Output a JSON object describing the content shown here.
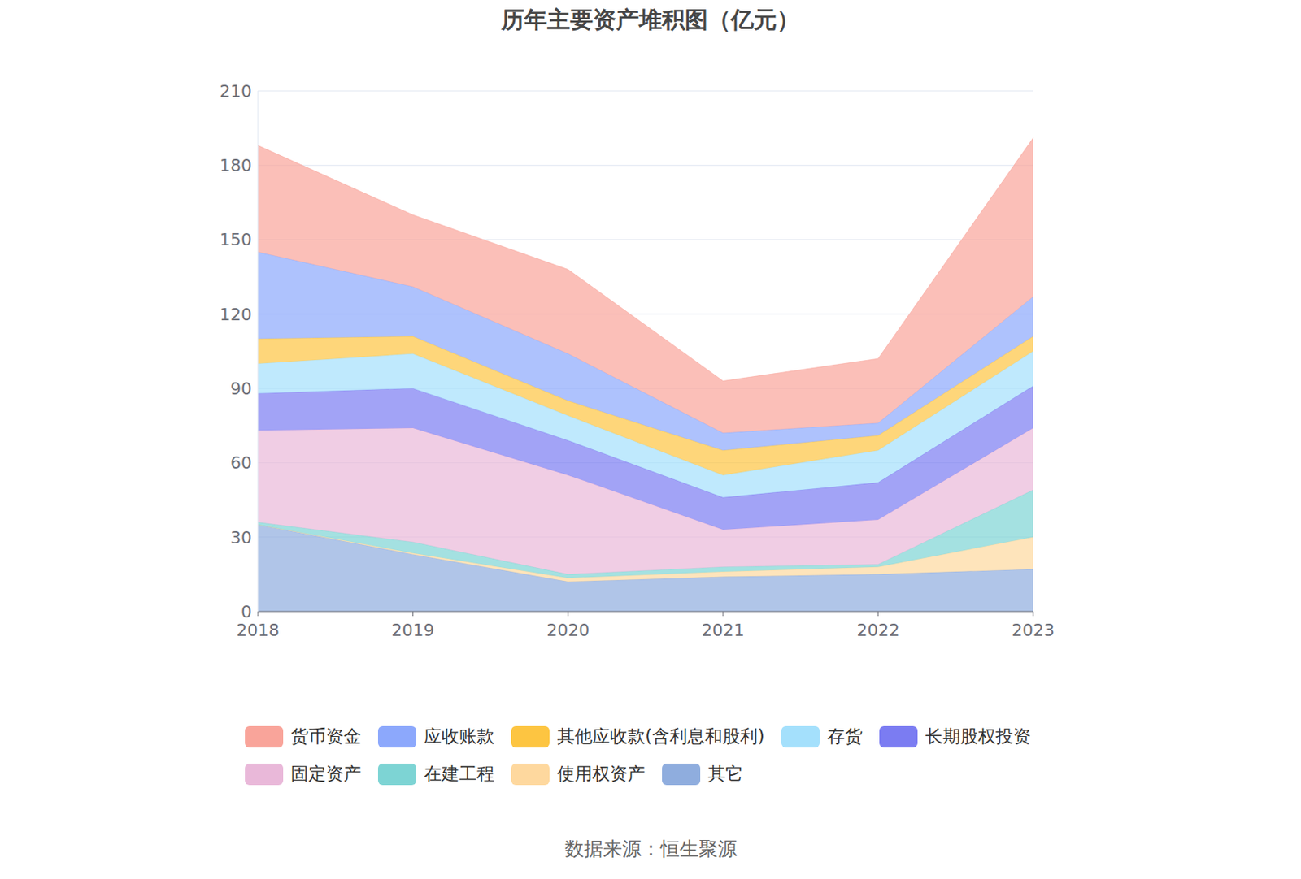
{
  "chart_data": {
    "type": "area",
    "title": "历年主要资产堆积图（亿元）",
    "source": "数据来源：恒生聚源",
    "stacked": true,
    "grid": true,
    "legend": "bottom",
    "categories": [
      "2018",
      "2019",
      "2020",
      "2021",
      "2022",
      "2023"
    ],
    "ylim": [
      0,
      210
    ],
    "yticks": [
      0,
      30,
      60,
      90,
      120,
      150,
      180,
      210
    ],
    "series": [
      {
        "name": "货币资金",
        "color": "#f9a49a",
        "values": [
          43,
          29,
          34,
          21,
          26,
          64
        ]
      },
      {
        "name": "应收账款",
        "color": "#8ca8fc",
        "values": [
          35,
          20,
          19,
          7,
          5,
          16
        ]
      },
      {
        "name": "其他应收款(含利息和股利)",
        "color": "#fdc541",
        "values": [
          10,
          7,
          6,
          10,
          6,
          6
        ]
      },
      {
        "name": "存货",
        "color": "#a4e0fc",
        "values": [
          12,
          14,
          10,
          9,
          13,
          14
        ]
      },
      {
        "name": "长期股权投资",
        "color": "#7b7cf2",
        "values": [
          15,
          16,
          14,
          13,
          15,
          17
        ]
      },
      {
        "name": "固定资产",
        "color": "#e9b8d9",
        "values": [
          37,
          46,
          40,
          15,
          18,
          25
        ]
      },
      {
        "name": "在建工程",
        "color": "#7dd4d4",
        "values": [
          1,
          4.5,
          1.5,
          2,
          1,
          19
        ]
      },
      {
        "name": "使用权资产",
        "color": "#fed89e",
        "values": [
          0,
          0.5,
          1.5,
          2,
          3,
          13
        ]
      },
      {
        "name": "其它",
        "color": "#8fadde",
        "values": [
          35,
          23,
          12,
          14,
          15,
          17
        ]
      }
    ]
  }
}
